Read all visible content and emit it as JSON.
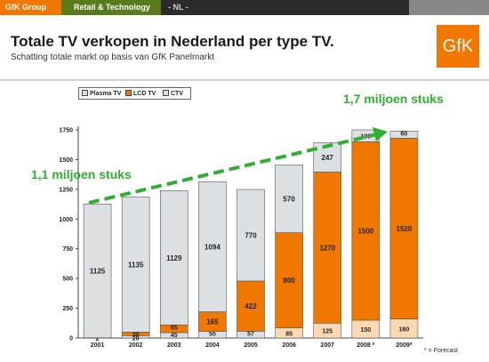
{
  "topbar": {
    "group": "GfK Group",
    "division": "Retail & Technology",
    "country": "- NL -"
  },
  "header": {
    "title": "Totale TV verkopen in Nederland per type TV.",
    "subtitle": "Schatting totale markt op basis van GfK Panelmarkt",
    "logo_text": "GfK"
  },
  "annotations": {
    "start_label": "1,1 miljoen stuks",
    "end_label": "1,7 miljoen stuks",
    "forecast_note": "* = Forecast"
  },
  "colors": {
    "plasma": "#dde0e2",
    "lcd": "#f07800",
    "ctv": "#fcd9b3",
    "trend_arrow": "#30b030",
    "brand_orange": "#f07800"
  },
  "chart_data": {
    "type": "bar",
    "stacked": true,
    "categories": [
      "2001",
      "2002",
      "2003",
      "2004",
      "2005",
      "2006",
      "2007",
      "2008 *",
      "2009*"
    ],
    "series": [
      {
        "name": "Plasma TV",
        "values": [
          null,
          20,
          45,
          55,
          57,
          null,
          null,
          null,
          null
        ],
        "data_labels": [
          "",
          "20",
          "45",
          "55",
          "57",
          "",
          "",
          "",
          ""
        ]
      },
      {
        "name": "LCD TV",
        "values": [
          null,
          30,
          65,
          165,
          422,
          800,
          1270,
          1500,
          1520
        ],
        "data_labels": [
          "",
          "30",
          "65",
          "165",
          "422",
          "800",
          "1270",
          "1500",
          "1520"
        ]
      },
      {
        "name": "CTV",
        "values": [
          1125,
          1135,
          1129,
          1094,
          770,
          570,
          247,
          100,
          60
        ],
        "data_labels": [
          "1125",
          "1135",
          "1129",
          "1094",
          "770",
          "570",
          "247",
          "100",
          "60"
        ]
      }
    ],
    "bottom_labels": [
      "2",
      "",
      "",
      "",
      "",
      "85",
      "125",
      "150",
      "160"
    ],
    "yticks": [
      0,
      250,
      500,
      750,
      1000,
      1250,
      1500,
      1750
    ],
    "ylim": [
      0,
      1750
    ],
    "grid": false,
    "legend_position": "top-left"
  }
}
